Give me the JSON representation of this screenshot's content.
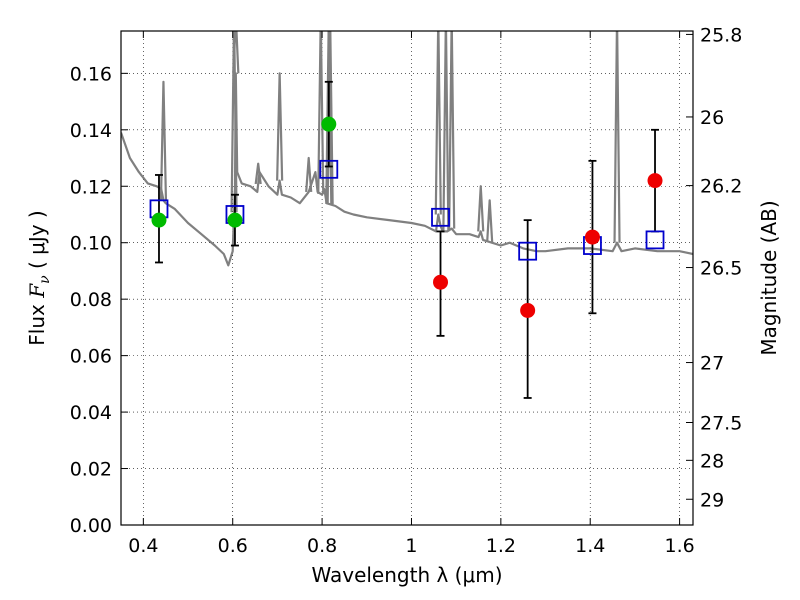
{
  "chart_data": {
    "type": "scatter",
    "title": "",
    "xlabel": "Wavelength  λ (μm)",
    "ylabel_parts": {
      "prefix": "Flux  ",
      "symbol": "F",
      "subscript": "ν",
      "unit": "  ( μJy )"
    },
    "y2label": "Magnitude (AB)",
    "xlim": [
      0.35,
      1.63
    ],
    "ylim": [
      0.0,
      0.175
    ],
    "x_ticks": [
      {
        "value": 0.4,
        "label": "0.4"
      },
      {
        "value": 0.6,
        "label": "0.6"
      },
      {
        "value": 0.8,
        "label": "0.8"
      },
      {
        "value": 1.0,
        "label": "1"
      },
      {
        "value": 1.2,
        "label": "1.2"
      },
      {
        "value": 1.4,
        "label": "1.4"
      },
      {
        "value": 1.6,
        "label": "1.6"
      }
    ],
    "y_ticks": [
      {
        "value": 0.0,
        "label": "0.00"
      },
      {
        "value": 0.02,
        "label": "0.02"
      },
      {
        "value": 0.04,
        "label": "0.04"
      },
      {
        "value": 0.06,
        "label": "0.06"
      },
      {
        "value": 0.08,
        "label": "0.08"
      },
      {
        "value": 0.1,
        "label": "0.10"
      },
      {
        "value": 0.12,
        "label": "0.12"
      },
      {
        "value": 0.14,
        "label": "0.14"
      },
      {
        "value": 0.16,
        "label": "0.16"
      }
    ],
    "y2_ticks": [
      {
        "mag": 25.8,
        "label": "25.8"
      },
      {
        "mag": 26.0,
        "label": "26"
      },
      {
        "mag": 26.2,
        "label": "26.2"
      },
      {
        "mag": 26.5,
        "label": "26.5"
      },
      {
        "mag": 27.0,
        "label": "27"
      },
      {
        "mag": 27.5,
        "label": "27.5"
      },
      {
        "mag": 28.0,
        "label": "28"
      },
      {
        "mag": 29.0,
        "label": "29"
      }
    ],
    "grid": true,
    "colors": {
      "spectrum": "#808080",
      "green": "#00bb00",
      "red": "#ee0000",
      "model": "#0000cc",
      "errorbar": "#000000"
    },
    "spectrum": {
      "x": [
        0.35,
        0.37,
        0.39,
        0.41,
        0.43,
        0.44,
        0.445,
        0.45,
        0.47,
        0.5,
        0.53,
        0.56,
        0.58,
        0.59,
        0.6,
        0.605,
        0.607,
        0.61,
        0.62,
        0.64,
        0.655,
        0.66,
        0.68,
        0.7,
        0.705,
        0.71,
        0.73,
        0.75,
        0.77,
        0.785,
        0.79,
        0.8,
        0.805,
        0.81,
        0.83,
        0.85,
        0.87,
        0.9,
        0.95,
        1.0,
        1.03,
        1.055,
        1.06,
        1.065,
        1.07,
        1.08,
        1.09,
        1.1,
        1.13,
        1.15,
        1.155,
        1.16,
        1.18,
        1.2,
        1.22,
        1.25,
        1.28,
        1.3,
        1.35,
        1.4,
        1.45,
        1.46,
        1.47,
        1.5,
        1.55,
        1.6,
        1.63
      ],
      "y": [
        0.139,
        0.13,
        0.125,
        0.121,
        0.12,
        0.119,
        0.115,
        0.114,
        0.112,
        0.107,
        0.103,
        0.099,
        0.096,
        0.092,
        0.097,
        0.12,
        0.16,
        0.125,
        0.121,
        0.12,
        0.118,
        0.125,
        0.12,
        0.117,
        0.122,
        0.117,
        0.116,
        0.114,
        0.118,
        0.125,
        0.118,
        0.117,
        0.119,
        0.114,
        0.113,
        0.111,
        0.11,
        0.109,
        0.108,
        0.107,
        0.106,
        0.104,
        0.11,
        0.106,
        0.104,
        0.104,
        0.105,
        0.103,
        0.103,
        0.102,
        0.104,
        0.101,
        0.1,
        0.099,
        0.1,
        0.098,
        0.097,
        0.097,
        0.098,
        0.098,
        0.097,
        0.1,
        0.097,
        0.098,
        0.097,
        0.097,
        0.096
      ]
    },
    "spectrum_lines": [
      {
        "x": 0.445,
        "y": 0.157
      },
      {
        "x": 0.603,
        "y": 0.18
      },
      {
        "x": 0.607,
        "y": 0.18
      },
      {
        "x": 0.657,
        "y": 0.128
      },
      {
        "x": 0.705,
        "y": 0.16
      },
      {
        "x": 0.77,
        "y": 0.13
      },
      {
        "x": 0.797,
        "y": 0.18
      },
      {
        "x": 0.815,
        "y": 0.18
      },
      {
        "x": 0.818,
        "y": 0.18
      },
      {
        "x": 1.06,
        "y": 0.18
      },
      {
        "x": 1.077,
        "y": 0.18
      },
      {
        "x": 1.09,
        "y": 0.18
      },
      {
        "x": 1.155,
        "y": 0.12
      },
      {
        "x": 1.175,
        "y": 0.115
      },
      {
        "x": 1.46,
        "y": 0.18
      }
    ],
    "model_points": [
      {
        "x": 0.435,
        "y": 0.112
      },
      {
        "x": 0.605,
        "y": 0.11
      },
      {
        "x": 0.815,
        "y": 0.126
      },
      {
        "x": 1.065,
        "y": 0.109
      },
      {
        "x": 1.26,
        "y": 0.097
      },
      {
        "x": 1.405,
        "y": 0.099
      },
      {
        "x": 1.545,
        "y": 0.101
      }
    ],
    "green_points": [
      {
        "x": 0.435,
        "y": 0.108,
        "ylo": 0.093,
        "yhi": 0.124
      },
      {
        "x": 0.605,
        "y": 0.108,
        "ylo": 0.099,
        "yhi": 0.117
      },
      {
        "x": 0.815,
        "y": 0.142,
        "ylo": 0.127,
        "yhi": 0.157
      }
    ],
    "red_points": [
      {
        "x": 1.065,
        "y": 0.086,
        "ylo": 0.067,
        "yhi": 0.104
      },
      {
        "x": 1.26,
        "y": 0.076,
        "ylo": 0.045,
        "yhi": 0.108
      },
      {
        "x": 1.405,
        "y": 0.102,
        "ylo": 0.075,
        "yhi": 0.129
      },
      {
        "x": 1.545,
        "y": 0.122,
        "ylo": 0.104,
        "yhi": 0.14
      }
    ]
  }
}
